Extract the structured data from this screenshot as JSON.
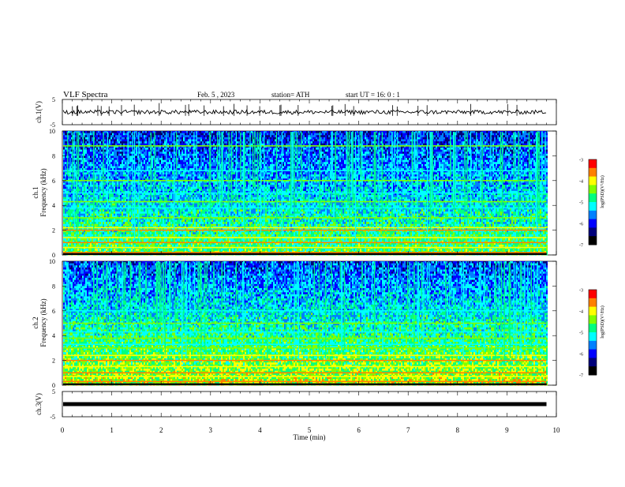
{
  "header": {
    "title": "VLF  Spectra",
    "date": "Feb. 5  , 2023",
    "station": "station= ATH",
    "start_time": "start  UT  =   16: 0   : 1"
  },
  "chart_data": [
    {
      "type": "line",
      "panel": "ch1-waveform",
      "ylabel": "ch.1(V)",
      "yticks": [
        "5",
        "-5"
      ],
      "ylim": [
        -5,
        5
      ],
      "xlim": [
        0,
        10
      ],
      "baseline": 0,
      "series_color": "#000000"
    },
    {
      "type": "heatmap",
      "panel": "ch1-spectrogram",
      "ylabel_line1": "ch.1",
      "ylabel_line2": "Frequency  (kHz)",
      "yticks": [
        "0",
        "2",
        "4",
        "6",
        "8",
        "10"
      ],
      "ylim": [
        0,
        10
      ],
      "xlim": [
        0,
        10
      ],
      "data_end_min": 9.8,
      "strong_lines_khz": [
        0.2,
        0.6,
        1.0,
        1.4,
        2.0,
        2.2,
        3.0,
        3.8,
        4.3,
        5.0,
        6.0,
        6.8,
        8.8
      ],
      "colorbar": {
        "label": "log(PSD)(V²/Hz)",
        "ticks": [
          "-3",
          "-4",
          "-5",
          "-6",
          "-7"
        ],
        "range": [
          -7,
          -3
        ]
      }
    },
    {
      "type": "heatmap",
      "panel": "ch2-spectrogram",
      "ylabel_line1": "ch.2",
      "ylabel_line2": "Frequency  (kHz)",
      "yticks": [
        "0",
        "2",
        "4",
        "6",
        "8",
        "10"
      ],
      "ylim": [
        0,
        10
      ],
      "xlim": [
        0,
        10
      ],
      "data_end_min": 9.8,
      "strong_lines_khz": [
        0.3,
        0.7,
        1.0,
        1.5,
        2.0,
        2.4,
        3.0,
        3.3,
        3.8,
        4.3,
        5.0,
        6.0
      ],
      "colorbar": {
        "label": "log(PSD)(V²/Hz)",
        "ticks": [
          "-3",
          "-4",
          "-5",
          "-6",
          "-7"
        ],
        "range": [
          -7,
          -3
        ]
      }
    },
    {
      "type": "line",
      "panel": "ch3-waveform",
      "ylabel": "ch.3(V)",
      "yticks": [
        "5",
        "-5"
      ],
      "ylim": [
        -5,
        5
      ],
      "xlim": [
        0,
        10
      ],
      "baseline": 0,
      "series_color": "#000000"
    }
  ],
  "xaxis": {
    "label": "Time  (min)",
    "ticks": [
      "0",
      "1",
      "2",
      "3",
      "4",
      "5",
      "6",
      "7",
      "8",
      "9",
      "10"
    ],
    "range": [
      0,
      10
    ]
  },
  "colors": {
    "colormap": [
      "#000000",
      "#00007a",
      "#0000ff",
      "#0080ff",
      "#00ffff",
      "#00ff80",
      "#80ff00",
      "#ffff00",
      "#ff8000",
      "#ff0000",
      "#ffffff"
    ]
  }
}
